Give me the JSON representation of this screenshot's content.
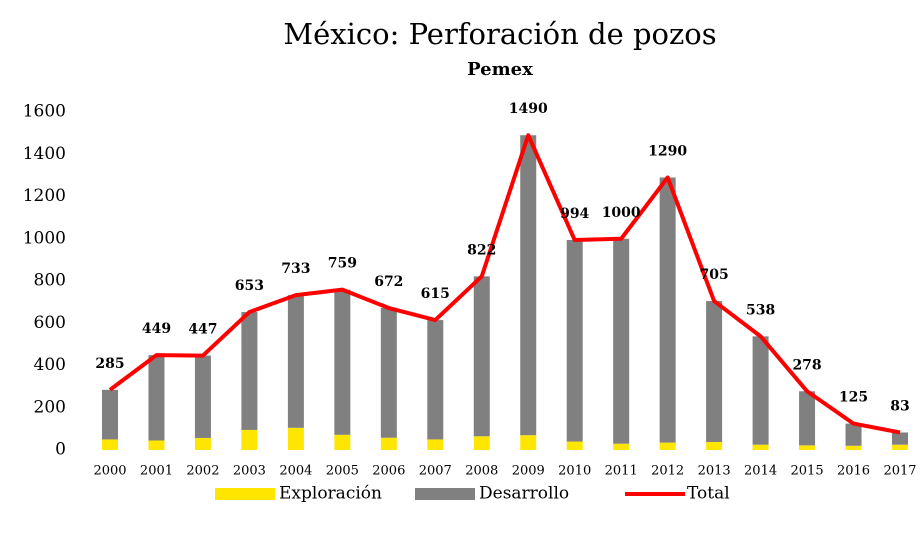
{
  "chart_data": {
    "type": "bar",
    "stacked": true,
    "title": "México: Perforación de pozos",
    "subtitle": "Pemex",
    "categories": [
      "2000",
      "2001",
      "2002",
      "2003",
      "2004",
      "2005",
      "2006",
      "2007",
      "2008",
      "2009",
      "2010",
      "2011",
      "2012",
      "2013",
      "2014",
      "2015",
      "2016",
      "2017"
    ],
    "series": [
      {
        "name": "Exploración",
        "type": "bar",
        "color": "#ffe600",
        "values": [
          50,
          45,
          57,
          95,
          105,
          72,
          58,
          50,
          65,
          70,
          40,
          30,
          35,
          38,
          25,
          22,
          20,
          25
        ]
      },
      {
        "name": "Desarrollo",
        "type": "bar",
        "color": "#808080",
        "values": [
          235,
          404,
          390,
          558,
          628,
          687,
          614,
          565,
          757,
          1420,
          954,
          970,
          1255,
          667,
          513,
          256,
          105,
          58
        ]
      },
      {
        "name": "Total",
        "type": "line",
        "color": "#ff0000",
        "values": [
          285,
          449,
          447,
          653,
          733,
          759,
          672,
          615,
          822,
          1490,
          994,
          1000,
          1290,
          705,
          538,
          278,
          125,
          83
        ]
      }
    ],
    "ylim": [
      0,
      1600
    ],
    "yticks": [
      0,
      200,
      400,
      600,
      800,
      1000,
      1200,
      1400,
      1600
    ],
    "grid": false,
    "legend": "bottom"
  }
}
